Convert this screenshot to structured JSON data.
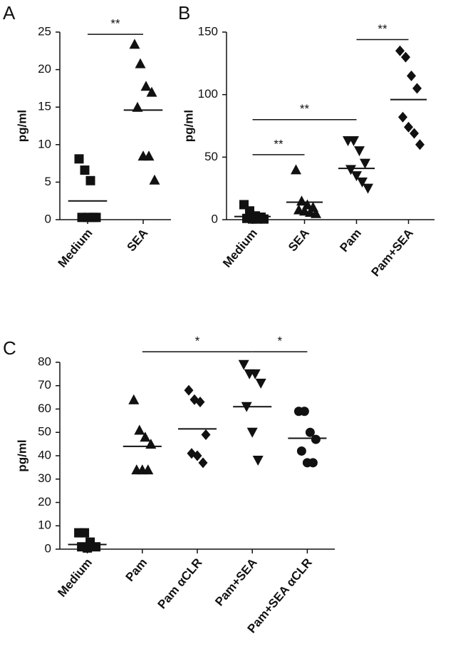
{
  "chart_data": [
    {
      "type": "scatter",
      "panel": "A",
      "ylabel": "pg/ml",
      "categories": [
        "Medium",
        "SEA"
      ],
      "markers": [
        "square",
        "triangle"
      ],
      "points": [
        [
          8.1,
          6.6,
          5.2,
          0.3,
          0.3,
          0.3,
          0.3
        ],
        [
          23.4,
          20.8,
          17.8,
          17.0,
          15.0,
          8.5,
          8.5,
          5.3
        ]
      ],
      "means": [
        2.5,
        14.6
      ],
      "ylim": [
        0,
        25
      ],
      "yticks": [
        0,
        5,
        10,
        15,
        20,
        25
      ],
      "annotations": [
        {
          "text": "**",
          "from": 0,
          "to": 1,
          "y": 24.7
        }
      ]
    },
    {
      "type": "scatter",
      "panel": "B",
      "ylabel": "pg/ml",
      "categories": [
        "Medium",
        "SEA",
        "Pam",
        "Pam+SEA"
      ],
      "markers": [
        "square",
        "triangle",
        "triangle-down",
        "diamond"
      ],
      "points": [
        [
          12,
          7,
          3,
          2,
          1,
          0.5,
          0.5,
          0.5
        ],
        [
          40,
          15,
          12,
          10,
          8,
          7,
          6,
          5
        ],
        [
          63,
          63,
          55,
          45,
          40,
          35,
          30,
          25
        ],
        [
          135,
          130,
          115,
          105,
          82,
          74,
          69,
          60
        ]
      ],
      "means": [
        2.5,
        14,
        41,
        96
      ],
      "ylim": [
        0,
        150
      ],
      "yticks": [
        0,
        50,
        100,
        150
      ],
      "annotations": [
        {
          "text": "**",
          "from": 0,
          "to": 1,
          "y": 52
        },
        {
          "text": "**",
          "from": 0,
          "to": 2,
          "y": 80
        },
        {
          "text": "**",
          "from": 2,
          "to": 3,
          "y": 144
        }
      ]
    },
    {
      "type": "scatter",
      "panel": "C",
      "ylabel": "pg/ml",
      "categories": [
        "Medium",
        "Pam",
        "Pam αCLR",
        "Pam+SEA",
        "Pam+SEA αCLR"
      ],
      "markers": [
        "square",
        "triangle",
        "diamond",
        "triangle-down",
        "circle"
      ],
      "points": [
        [
          7,
          7,
          3,
          1,
          1,
          0.5
        ],
        [
          64,
          51,
          48,
          45,
          34,
          34,
          34
        ],
        [
          68,
          64,
          63,
          49,
          41,
          40,
          37
        ],
        [
          79,
          75,
          75,
          71,
          61,
          50,
          38
        ],
        [
          59,
          59,
          50,
          47,
          42,
          37,
          37
        ]
      ],
      "means": [
        2,
        44,
        51.5,
        61,
        47.5
      ],
      "ylim": [
        0,
        80
      ],
      "yticks": [
        0,
        10,
        20,
        30,
        40,
        50,
        60,
        70,
        80
      ],
      "annotations": [
        {
          "text": "*",
          "from": 1,
          "to": 3,
          "y": 84.5
        },
        {
          "text": "*",
          "from": 3,
          "to": 4,
          "y": 84.5
        }
      ]
    }
  ]
}
